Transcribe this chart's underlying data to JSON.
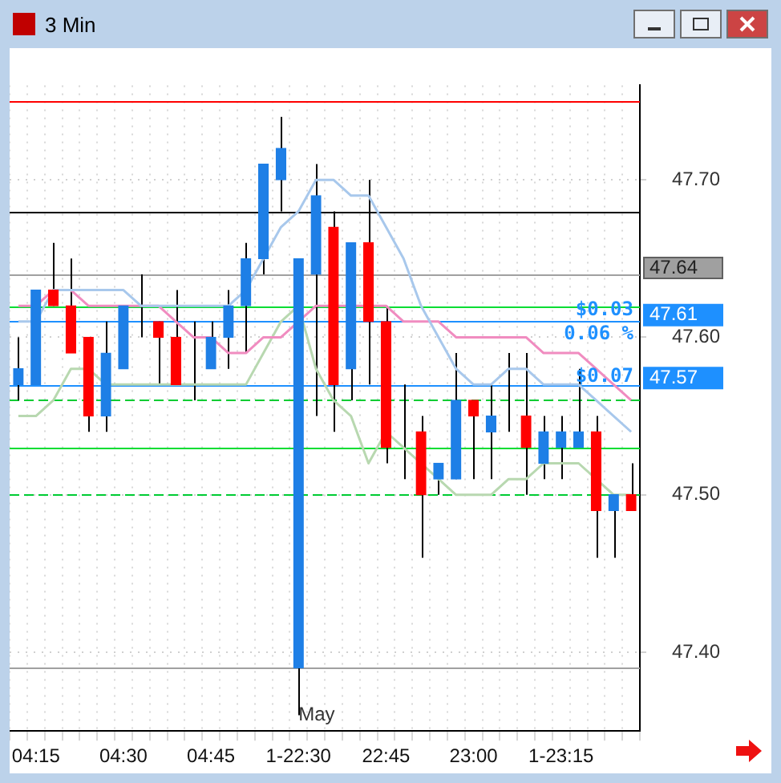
{
  "chart_data": {
    "type": "candlestick",
    "title": "3 Min",
    "categories": [
      null,
      "04:15",
      null,
      null,
      null,
      null,
      "04:30",
      null,
      null,
      null,
      null,
      "04:45",
      null,
      null,
      null,
      null,
      "1-22:30",
      null,
      null,
      null,
      null,
      "22:45",
      null,
      null,
      null,
      null,
      "23:00",
      null,
      null,
      null,
      null,
      "1-23:15",
      null,
      null,
      null,
      null
    ],
    "ohlc": [
      [
        47.57,
        47.6,
        47.56,
        47.58
      ],
      [
        47.57,
        47.63,
        47.57,
        47.63
      ],
      [
        47.63,
        47.66,
        47.62,
        47.62
      ],
      [
        47.62,
        47.65,
        47.59,
        47.59
      ],
      [
        47.6,
        47.6,
        47.54,
        47.55
      ],
      [
        47.55,
        47.61,
        47.54,
        47.59
      ],
      [
        47.58,
        47.62,
        47.58,
        47.62
      ],
      [
        47.61,
        47.64,
        47.6,
        47.61
      ],
      [
        47.61,
        47.61,
        47.57,
        47.6
      ],
      [
        47.6,
        47.63,
        47.57,
        47.57
      ],
      [
        47.58,
        47.61,
        47.56,
        47.58
      ],
      [
        47.58,
        47.61,
        47.58,
        47.6
      ],
      [
        47.6,
        47.63,
        47.58,
        47.62
      ],
      [
        47.62,
        47.66,
        47.59,
        47.65
      ],
      [
        47.65,
        47.71,
        47.64,
        47.71
      ],
      [
        47.7,
        47.74,
        47.68,
        47.72
      ],
      [
        47.39,
        47.65,
        47.36,
        47.65
      ],
      [
        47.64,
        47.71,
        47.55,
        47.69
      ],
      [
        47.67,
        47.68,
        47.54,
        47.57
      ],
      [
        47.58,
        47.66,
        47.56,
        47.66
      ],
      [
        47.66,
        47.7,
        47.57,
        47.61
      ],
      [
        47.61,
        47.62,
        47.52,
        47.53
      ],
      [
        47.54,
        47.57,
        47.51,
        47.54
      ],
      [
        47.54,
        47.55,
        47.46,
        47.5
      ],
      [
        47.51,
        47.52,
        47.5,
        47.52
      ],
      [
        47.51,
        47.59,
        47.51,
        47.56
      ],
      [
        47.56,
        47.56,
        47.51,
        47.55
      ],
      [
        47.54,
        47.57,
        47.51,
        47.55
      ],
      [
        47.55,
        47.59,
        47.54,
        47.55
      ],
      [
        47.55,
        47.59,
        47.5,
        47.53
      ],
      [
        47.52,
        47.55,
        47.51,
        47.54
      ],
      [
        47.53,
        47.55,
        47.51,
        47.54
      ],
      [
        47.53,
        47.58,
        47.53,
        47.54
      ],
      [
        47.54,
        47.55,
        47.46,
        47.49
      ],
      [
        47.49,
        47.5,
        47.46,
        47.5
      ],
      [
        47.5,
        47.52,
        47.49,
        47.49
      ]
    ],
    "colors": [
      "#1e7fe6",
      "#1e7fe6",
      "#ff0000",
      "#ff0000",
      "#ff0000",
      "#1e7fe6",
      "#1e7fe6",
      "#1e7fe6",
      "#ff0000",
      "#ff0000",
      "#1e7fe6",
      "#1e7fe6",
      "#1e7fe6",
      "#1e7fe6",
      "#1e7fe6",
      "#1e7fe6",
      "#1e7fe6",
      "#1e7fe6",
      "#ff0000",
      "#1e7fe6",
      "#ff0000",
      "#ff0000",
      "#1e7fe6",
      "#ff0000",
      "#1e7fe6",
      "#1e7fe6",
      "#ff0000",
      "#1e7fe6",
      "#1e7fe6",
      "#ff0000",
      "#1e7fe6",
      "#1e7fe6",
      "#1e7fe6",
      "#ff0000",
      "#1e7fe6",
      "#ff0000"
    ],
    "series": [
      {
        "type": "line",
        "color": "#a8c8ec",
        "values": [
          47.61,
          47.61,
          47.63,
          47.63,
          47.63,
          47.63,
          47.63,
          47.62,
          47.62,
          47.62,
          47.62,
          47.62,
          47.62,
          47.63,
          47.65,
          47.67,
          47.68,
          47.7,
          47.7,
          47.69,
          47.69,
          47.67,
          47.65,
          47.62,
          47.6,
          47.58,
          47.57,
          47.57,
          47.58,
          47.58,
          47.57,
          47.57,
          47.57,
          47.56,
          47.55,
          47.54
        ]
      },
      {
        "type": "line",
        "color": "#f08cc0",
        "values": [
          47.62,
          47.62,
          47.63,
          47.63,
          47.62,
          47.62,
          47.62,
          47.62,
          47.62,
          47.61,
          47.6,
          47.6,
          47.59,
          47.59,
          47.6,
          47.6,
          47.61,
          47.62,
          47.62,
          47.62,
          47.62,
          47.62,
          47.61,
          47.61,
          47.61,
          47.6,
          47.6,
          47.6,
          47.6,
          47.6,
          47.59,
          47.59,
          47.59,
          47.58,
          47.57,
          47.56
        ]
      },
      {
        "type": "line",
        "color": "#b8d8b0",
        "values": [
          47.55,
          47.55,
          47.56,
          47.58,
          47.58,
          47.57,
          47.57,
          47.57,
          47.57,
          47.57,
          47.57,
          47.57,
          47.57,
          47.57,
          47.59,
          47.61,
          47.62,
          47.58,
          47.56,
          47.55,
          47.52,
          47.54,
          47.53,
          47.52,
          47.51,
          47.5,
          47.5,
          47.5,
          47.51,
          47.51,
          47.52,
          47.52,
          47.52,
          47.51,
          47.5,
          47.5
        ]
      }
    ],
    "ylim": [
      47.35,
      47.76
    ],
    "yticks": [
      {
        "value": 47.4,
        "label": "47.40"
      },
      {
        "value": 47.5,
        "label": "47.50"
      },
      {
        "value": 47.6,
        "label": "47.60"
      },
      {
        "value": 47.7,
        "label": "47.70"
      }
    ],
    "grid": true,
    "legend": false,
    "ref_lines": [
      {
        "axis": "y",
        "value": 47.75,
        "color": "#ff0000"
      },
      {
        "axis": "y",
        "value": 47.68,
        "color": "#000000"
      },
      {
        "axis": "y",
        "value": 47.64,
        "label": "47.64",
        "color": "#a0a0a0"
      },
      {
        "axis": "y",
        "value": 47.62,
        "color": "#00dd33"
      },
      {
        "axis": "y",
        "value": 47.61,
        "label": "47.61",
        "color": "#1e90ff"
      },
      {
        "axis": "y",
        "value": 47.57,
        "label": "47.57",
        "color": "#1e90ff"
      },
      {
        "axis": "y",
        "value": 47.56,
        "color": "#00cc33",
        "line_style": "dashed"
      },
      {
        "axis": "y",
        "value": 47.53,
        "color": "#00dd33"
      },
      {
        "axis": "y",
        "value": 47.5,
        "color": "#00cc33",
        "line_style": "dashed"
      },
      {
        "axis": "y",
        "value": 47.39,
        "color": "#a0a0a0"
      }
    ],
    "annotations": [
      {
        "text": "May",
        "x": "1-22:30",
        "y": 47.36
      },
      {
        "text": "$0.07",
        "y": 47.575
      },
      "$0.03",
      "0.06 %"
    ]
  }
}
